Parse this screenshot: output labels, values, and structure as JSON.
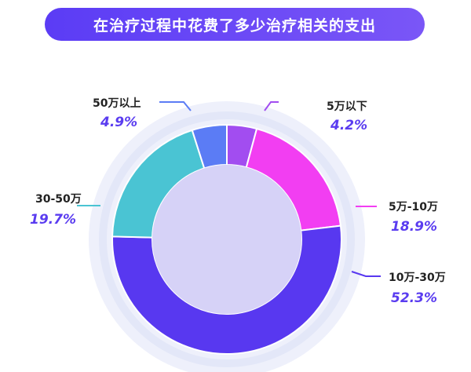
{
  "chart_data": {
    "type": "pie",
    "title": "在治疗过程中花费了多少治疗相关的支出",
    "slices": [
      {
        "label": "5万以下",
        "value": 4.2,
        "display": "4.2%",
        "color": "#a24df0"
      },
      {
        "label": "5万-10万",
        "value": 18.9,
        "display": "18.9%",
        "color": "#f23ef2"
      },
      {
        "label": "10万-30万",
        "value": 52.3,
        "display": "52.3%",
        "color": "#5838f0"
      },
      {
        "label": "30-50万",
        "value": 19.7,
        "display": "19.7%",
        "color": "#4ac4d3"
      },
      {
        "label": "50万以上",
        "value": 4.9,
        "display": "4.9%",
        "color": "#5b7cf5"
      }
    ],
    "colors": {
      "inner_disc": "#d6d2f7",
      "halo": "#eef0fb",
      "halo_ring": "#e3e7f8"
    }
  }
}
